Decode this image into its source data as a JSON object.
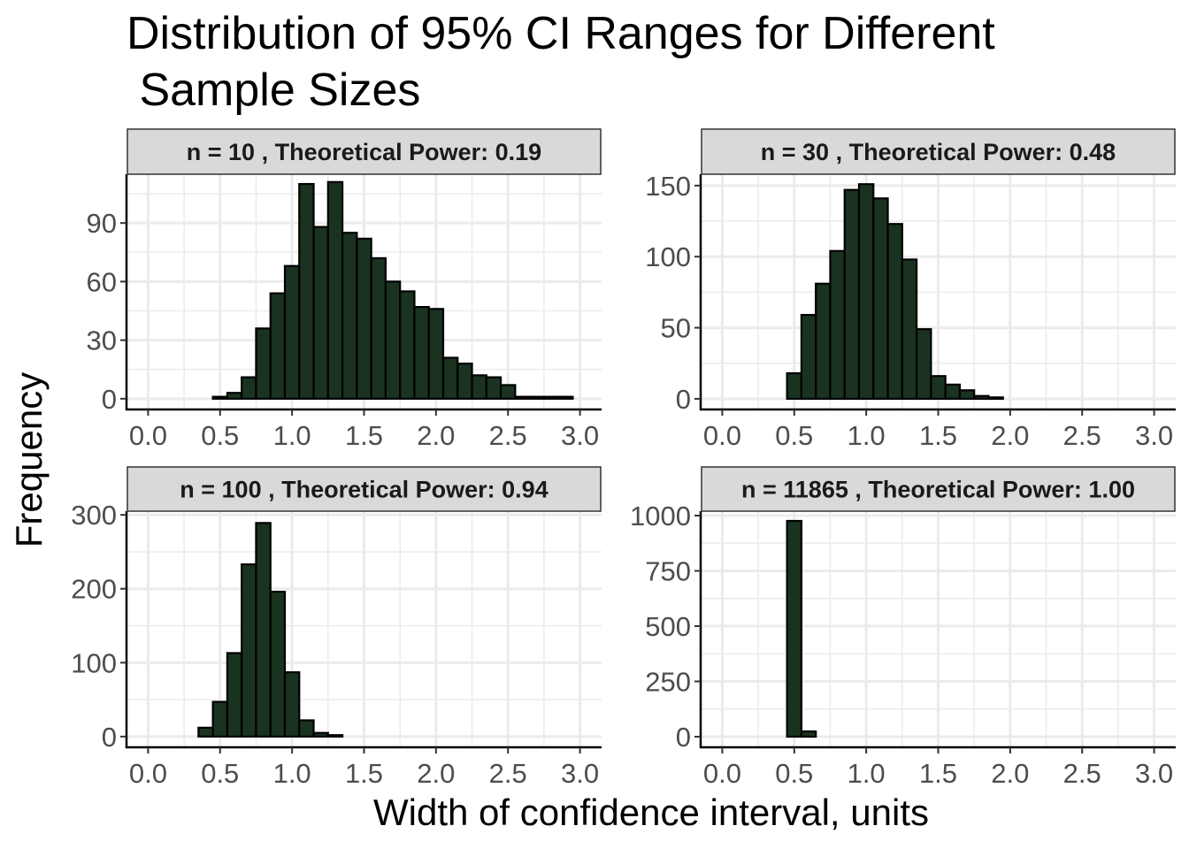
{
  "title_lines": [
    "Distribution of 95% CI Ranges for Different",
    " Sample Sizes"
  ],
  "xlabel": "Width of confidence interval, units",
  "ylabel": "Frequency",
  "colors": {
    "bar_fill": "#1a3320",
    "bar_stroke": "#000000",
    "strip_fill": "#d9d9d9",
    "grid": "#ebebeb"
  },
  "chart_data": [
    {
      "type": "bar",
      "panel_title": "n =  10 , Theoretical Power: 0.19",
      "xlim": [
        -0.15,
        3.15
      ],
      "ylim": [
        -5.5,
        115
      ],
      "xticks": [
        "0.0",
        "0.5",
        "1.0",
        "1.5",
        "2.0",
        "2.5",
        "3.0"
      ],
      "yticks": [
        0,
        30,
        60,
        90
      ],
      "bin_width": 0.1,
      "bins": [
        {
          "x": 0.5,
          "count": 1
        },
        {
          "x": 0.6,
          "count": 3
        },
        {
          "x": 0.7,
          "count": 11
        },
        {
          "x": 0.8,
          "count": 36
        },
        {
          "x": 0.9,
          "count": 54
        },
        {
          "x": 1.0,
          "count": 68
        },
        {
          "x": 1.1,
          "count": 110
        },
        {
          "x": 1.2,
          "count": 88
        },
        {
          "x": 1.3,
          "count": 111
        },
        {
          "x": 1.4,
          "count": 85
        },
        {
          "x": 1.5,
          "count": 82
        },
        {
          "x": 1.6,
          "count": 72
        },
        {
          "x": 1.7,
          "count": 60
        },
        {
          "x": 1.8,
          "count": 55
        },
        {
          "x": 1.9,
          "count": 47
        },
        {
          "x": 2.0,
          "count": 46
        },
        {
          "x": 2.1,
          "count": 21
        },
        {
          "x": 2.2,
          "count": 18
        },
        {
          "x": 2.3,
          "count": 12
        },
        {
          "x": 2.4,
          "count": 11
        },
        {
          "x": 2.5,
          "count": 7
        },
        {
          "x": 2.6,
          "count": 1
        },
        {
          "x": 2.7,
          "count": 1
        },
        {
          "x": 2.8,
          "count": 1
        },
        {
          "x": 2.9,
          "count": 1
        }
      ]
    },
    {
      "type": "bar",
      "panel_title": "n =  30 , Theoretical Power: 0.48",
      "xlim": [
        -0.15,
        3.15
      ],
      "ylim": [
        -7.5,
        158
      ],
      "xticks": [
        "0.0",
        "0.5",
        "1.0",
        "1.5",
        "2.0",
        "2.5",
        "3.0"
      ],
      "yticks": [
        0,
        50,
        100,
        150
      ],
      "bin_width": 0.1,
      "bins": [
        {
          "x": 0.5,
          "count": 18
        },
        {
          "x": 0.6,
          "count": 59
        },
        {
          "x": 0.7,
          "count": 81
        },
        {
          "x": 0.8,
          "count": 104
        },
        {
          "x": 0.9,
          "count": 147
        },
        {
          "x": 1.0,
          "count": 151
        },
        {
          "x": 1.1,
          "count": 141
        },
        {
          "x": 1.2,
          "count": 123
        },
        {
          "x": 1.3,
          "count": 98
        },
        {
          "x": 1.4,
          "count": 49
        },
        {
          "x": 1.5,
          "count": 16
        },
        {
          "x": 1.6,
          "count": 10
        },
        {
          "x": 1.7,
          "count": 6
        },
        {
          "x": 1.8,
          "count": 2
        },
        {
          "x": 1.9,
          "count": 1
        }
      ]
    },
    {
      "type": "bar",
      "panel_title": "n =  100 , Theoretical Power: 0.94",
      "xlim": [
        -0.15,
        3.15
      ],
      "ylim": [
        -14.5,
        305
      ],
      "xticks": [
        "0.0",
        "0.5",
        "1.0",
        "1.5",
        "2.0",
        "2.5",
        "3.0"
      ],
      "yticks": [
        0,
        100,
        200,
        300
      ],
      "bin_width": 0.1,
      "bins": [
        {
          "x": 0.4,
          "count": 12
        },
        {
          "x": 0.5,
          "count": 47
        },
        {
          "x": 0.6,
          "count": 113
        },
        {
          "x": 0.7,
          "count": 233
        },
        {
          "x": 0.8,
          "count": 289
        },
        {
          "x": 0.9,
          "count": 196
        },
        {
          "x": 1.0,
          "count": 87
        },
        {
          "x": 1.1,
          "count": 22
        },
        {
          "x": 1.2,
          "count": 5
        },
        {
          "x": 1.3,
          "count": 2
        }
      ]
    },
    {
      "type": "bar",
      "panel_title": "n =  11865 , Theoretical Power: 1.00",
      "xlim": [
        -0.15,
        3.15
      ],
      "ylim": [
        -48,
        1020
      ],
      "xticks": [
        "0.0",
        "0.5",
        "1.0",
        "1.5",
        "2.0",
        "2.5",
        "3.0"
      ],
      "yticks": [
        0,
        250,
        500,
        750,
        1000
      ],
      "bin_width": 0.1,
      "bins": [
        {
          "x": 0.5,
          "count": 976
        },
        {
          "x": 0.6,
          "count": 24
        }
      ]
    }
  ]
}
